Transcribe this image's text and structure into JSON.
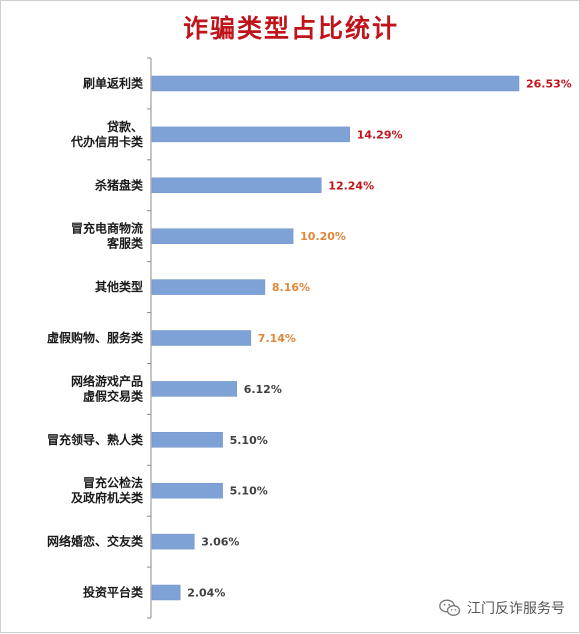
{
  "chart_data": {
    "type": "bar",
    "orientation": "horizontal",
    "title": "诈骗类型占比统计",
    "xlabel": "",
    "ylabel": "",
    "xlim": [
      0,
      28
    ],
    "grid": false,
    "legend": "none",
    "bar_color": "#7ea1d6",
    "categories": [
      [
        "刷单返利类"
      ],
      [
        "贷款、",
        "代办信用卡类"
      ],
      [
        "杀猪盘类"
      ],
      [
        "冒充电商物流",
        "客服类"
      ],
      [
        "其他类型"
      ],
      [
        "虚假购物、服务类"
      ],
      [
        "网络游戏产品",
        "虚假交易类"
      ],
      [
        "冒充领导、熟人类"
      ],
      [
        "冒充公检法",
        "及政府机关类"
      ],
      [
        "网络婚恋、交友类"
      ],
      [
        "投资平台类"
      ]
    ],
    "values": [
      26.53,
      14.29,
      12.24,
      10.2,
      8.16,
      7.14,
      6.12,
      5.1,
      5.1,
      3.06,
      2.04
    ],
    "value_labels": [
      "26.53%",
      "14.29%",
      "12.24%",
      "10.20%",
      "8.16%",
      "7.14%",
      "6.12%",
      "5.10%",
      "5.10%",
      "3.06%",
      "2.04%"
    ],
    "label_colors": [
      "#c0141b",
      "#c0141b",
      "#c0141b",
      "#e0863a",
      "#e0863a",
      "#e0863a",
      "#404040",
      "#404040",
      "#404040",
      "#404040",
      "#404040"
    ]
  },
  "watermark": {
    "icon": "wechat-icon",
    "text": "江门反诈服务号"
  }
}
